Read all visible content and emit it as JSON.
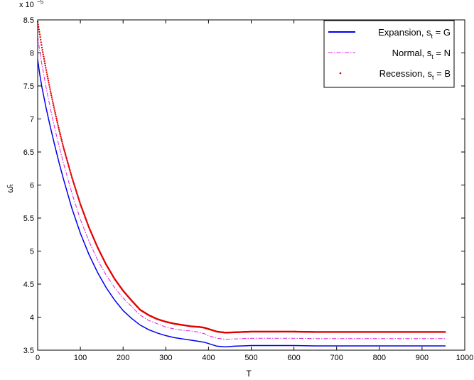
{
  "chart_data": {
    "type": "line",
    "title": "",
    "xlabel": "T",
    "ylabel": "ω̄ₜ",
    "xlim": [
      0,
      1000
    ],
    "ylim": [
      3.5,
      8.5
    ],
    "y_multiplier": "x 10",
    "y_exponent": "−5",
    "xticks": [
      "0",
      "100",
      "200",
      "300",
      "400",
      "500",
      "600",
      "700",
      "800",
      "900",
      "1000"
    ],
    "yticks": [
      "3.5",
      "4",
      "4.5",
      "5",
      "5.5",
      "6",
      "6.5",
      "7",
      "7.5",
      "8",
      "8.5"
    ],
    "grid": false,
    "legend_position": "top-right",
    "series": [
      {
        "name": "Expansion, s",
        "name_sub": "t",
        "name_suffix": " = G",
        "color": "#0000ee",
        "style": "solid",
        "x": [
          0,
          5,
          10,
          20,
          30,
          40,
          50,
          60,
          80,
          100,
          120,
          140,
          160,
          180,
          200,
          220,
          240,
          260,
          280,
          300,
          320,
          340,
          360,
          380,
          390,
          400,
          410,
          420,
          440,
          460,
          480,
          500,
          550,
          600,
          650,
          700,
          800,
          900,
          955
        ],
        "y": [
          7.9,
          7.67,
          7.48,
          7.16,
          6.87,
          6.6,
          6.34,
          6.1,
          5.65,
          5.27,
          4.95,
          4.68,
          4.45,
          4.26,
          4.1,
          3.98,
          3.88,
          3.81,
          3.76,
          3.72,
          3.69,
          3.67,
          3.65,
          3.63,
          3.62,
          3.6,
          3.58,
          3.56,
          3.55,
          3.56,
          3.565,
          3.57,
          3.57,
          3.57,
          3.565,
          3.565,
          3.565,
          3.565,
          3.565
        ]
      },
      {
        "name": "Normal, s",
        "name_sub": "t",
        "name_suffix": " = N",
        "color": "#e020e0",
        "style": "dashdot",
        "x": [
          0,
          5,
          10,
          20,
          30,
          40,
          50,
          60,
          80,
          100,
          120,
          140,
          160,
          180,
          200,
          220,
          240,
          260,
          280,
          300,
          320,
          340,
          360,
          380,
          390,
          400,
          410,
          420,
          440,
          460,
          480,
          500,
          550,
          600,
          650,
          700,
          800,
          900,
          955
        ],
        "y": [
          8.25,
          8.02,
          7.82,
          7.47,
          7.15,
          6.86,
          6.59,
          6.34,
          5.88,
          5.48,
          5.15,
          4.87,
          4.64,
          4.45,
          4.29,
          4.16,
          4.03,
          3.95,
          3.9,
          3.85,
          3.82,
          3.8,
          3.79,
          3.77,
          3.75,
          3.72,
          3.7,
          3.68,
          3.665,
          3.67,
          3.675,
          3.68,
          3.68,
          3.68,
          3.675,
          3.675,
          3.675,
          3.675,
          3.675
        ]
      },
      {
        "name": "Recession, s",
        "name_sub": "t",
        "name_suffix": " = B",
        "color": "#e00000",
        "style": "dotted",
        "x": [
          0,
          5,
          10,
          20,
          30,
          40,
          50,
          60,
          80,
          100,
          120,
          140,
          160,
          180,
          200,
          220,
          240,
          260,
          280,
          300,
          320,
          340,
          360,
          380,
          390,
          400,
          410,
          420,
          440,
          460,
          480,
          500,
          550,
          600,
          650,
          700,
          800,
          900,
          955
        ],
        "y": [
          8.47,
          8.28,
          8.08,
          7.74,
          7.42,
          7.12,
          6.84,
          6.58,
          6.12,
          5.71,
          5.36,
          5.06,
          4.8,
          4.58,
          4.4,
          4.25,
          4.11,
          4.03,
          3.97,
          3.93,
          3.9,
          3.88,
          3.86,
          3.85,
          3.84,
          3.82,
          3.8,
          3.78,
          3.765,
          3.77,
          3.775,
          3.78,
          3.78,
          3.78,
          3.775,
          3.775,
          3.775,
          3.775,
          3.775
        ]
      }
    ]
  }
}
